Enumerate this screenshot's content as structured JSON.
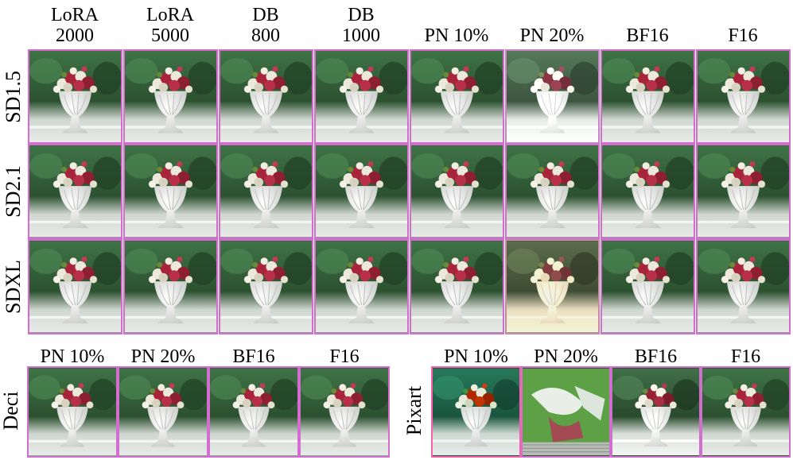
{
  "top_grid": {
    "column_headers": [
      {
        "line1": "LoRA",
        "line2": "2000"
      },
      {
        "line1": "LoRA",
        "line2": "5000"
      },
      {
        "line1": "DB",
        "line2": "800"
      },
      {
        "line1": "DB",
        "line2": "1000"
      },
      {
        "line1": "",
        "line2": "PN 10%"
      },
      {
        "line1": "",
        "line2": "PN 20%"
      },
      {
        "line1": "",
        "line2": "BF16"
      },
      {
        "line1": "",
        "line2": "F16"
      }
    ],
    "row_labels": [
      "SD1.5",
      "SD2.1",
      "SDXL"
    ]
  },
  "bottom_left": {
    "row_label": "Deci",
    "column_headers": [
      "PN 10%",
      "PN 20%",
      "BF16",
      "F16"
    ]
  },
  "bottom_right": {
    "row_label": "Pixart",
    "column_headers": [
      "PN 10%",
      "PN 20%",
      "BF16",
      "F16"
    ]
  },
  "colors": {
    "tile_border": "#d46cd1",
    "foliage": "#2f5a35",
    "vase": "#f1f1ef",
    "flower_red": "#a8243a",
    "flower_white": "#ece8dc"
  },
  "tile_icon": "vase-of-flowers-image"
}
